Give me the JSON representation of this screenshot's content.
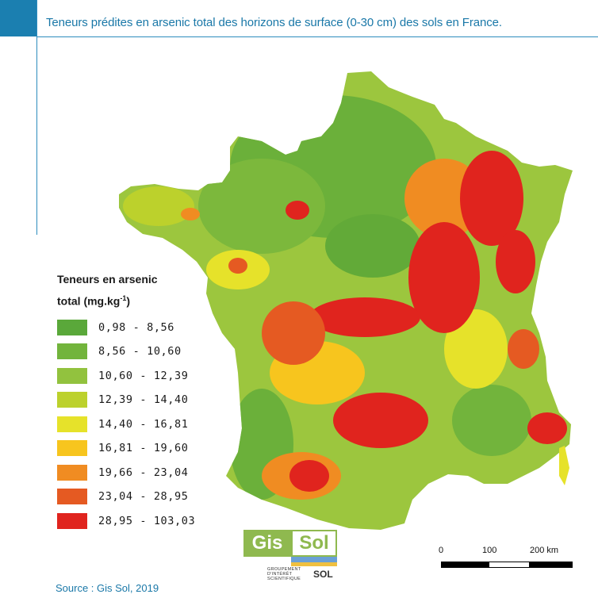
{
  "title": "Teneurs prédites en arsenic total des horizons de surface (0-30 cm) des sols en France.",
  "legend": {
    "title_line1": "Teneurs en arsenic",
    "title_line2": "total (mg.kg",
    "title_sup": "-1",
    "title_close": ")",
    "items": [
      {
        "label": "0,98 - 8,56",
        "color": "#5aa83a"
      },
      {
        "label": "8,56 - 10,60",
        "color": "#72b43c"
      },
      {
        "label": "10,60 - 12,39",
        "color": "#92c23e"
      },
      {
        "label": "12,39 - 14,40",
        "color": "#bcd12c"
      },
      {
        "label": "14,40 - 16,81",
        "color": "#e6e22a"
      },
      {
        "label": "16,81 - 19,60",
        "color": "#f7c51e"
      },
      {
        "label": "19,66 - 23,04",
        "color": "#f08c22"
      },
      {
        "label": "23,04 - 28,95",
        "color": "#e55a22"
      },
      {
        "label": "28,95 - 103,03",
        "color": "#e0241e"
      }
    ]
  },
  "scale": {
    "labels": [
      "0",
      "100",
      "200 km"
    ]
  },
  "logo": {
    "gis": "Gis",
    "sol": "Sol",
    "subtitle": "GROUPEMENT D'INTÉRÊT SCIENTIFIQUE",
    "subtitle_sol": "SOL"
  },
  "source": "Source : Gis Sol, 2019",
  "colors": {
    "frame": "#1b7fb0",
    "title": "#1a78a8"
  }
}
